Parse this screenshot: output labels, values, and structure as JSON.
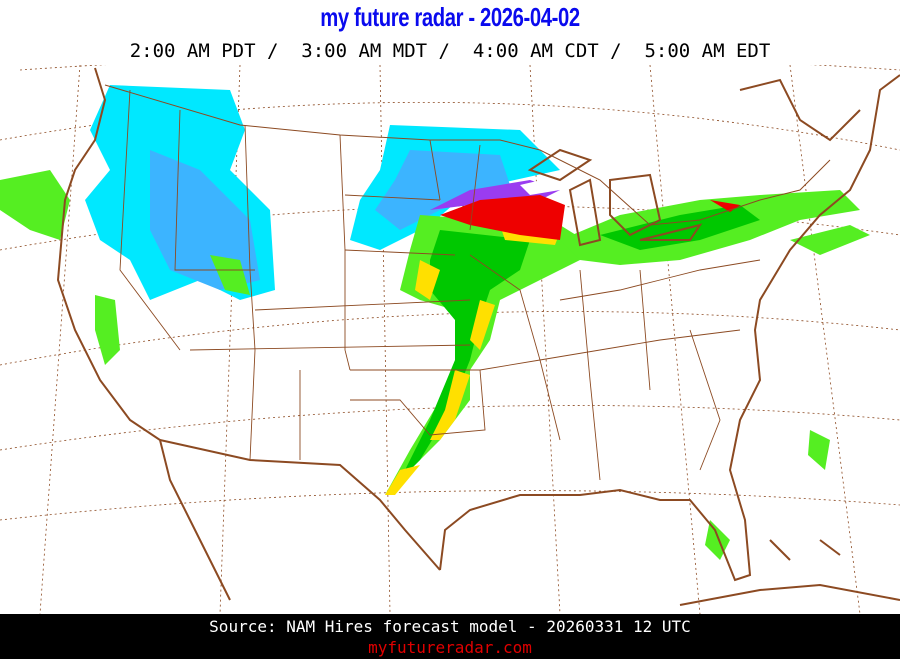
{
  "header": {
    "title": "my future radar - 2026-04-02",
    "times": "2:00 AM PDT /  3:00 AM MDT /  4:00 AM CDT /  5:00 AM EDT"
  },
  "footer": {
    "source": "Source: NAM Hires forecast model - 20260331 12 UTC",
    "site": "myfutureradar.com"
  },
  "colors": {
    "title": "#0a0aee",
    "borders": "#8c4a22",
    "snow_light": "#00e8ff",
    "snow_heavy": "#3cb4ff",
    "rain_light": "#55ee22",
    "rain_moderate": "#00c800",
    "rain_heavy": "#ffe000",
    "rain_intense": "#ee0000",
    "mixed": "#9a3cf0",
    "site": "#e00000"
  }
}
